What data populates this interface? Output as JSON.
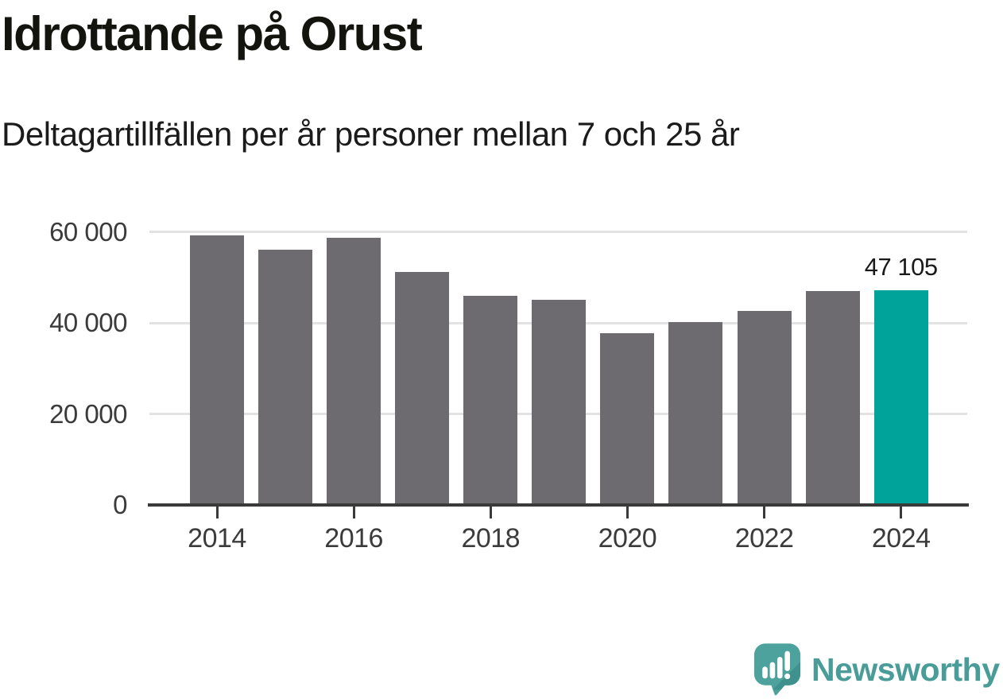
{
  "header": {
    "title": "Idrottande på Orust",
    "subtitle": "Deltagartillfällen per år personer mellan 7 och 25 år"
  },
  "chart_data": {
    "type": "bar",
    "title": "Idrottande på Orust",
    "subtitle": "Deltagartillfällen per år personer mellan 7 och 25 år",
    "categories": [
      "2014",
      "2015",
      "2016",
      "2017",
      "2018",
      "2019",
      "2020",
      "2021",
      "2022",
      "2023",
      "2024"
    ],
    "values": [
      59200,
      56000,
      58700,
      51100,
      46000,
      45000,
      37800,
      40100,
      42700,
      47000,
      47105
    ],
    "ylim": [
      0,
      60000
    ],
    "yticks": [
      0,
      20000,
      40000,
      60000
    ],
    "ytick_labels": [
      "0",
      "20 000",
      "40 000",
      "60 000"
    ],
    "xtick_labels": [
      "2014",
      "2016",
      "2018",
      "2020",
      "2022",
      "2024"
    ],
    "grid": "horizontal",
    "legend": "none",
    "highlight": {
      "category": "2024",
      "value": 47105,
      "label": "47 105"
    },
    "colors": {
      "bar": "#6e6b70",
      "highlight": "#00a399",
      "gridline": "#e2e2e2",
      "axis": "#3a3a3a",
      "tick_label": "#3b3b3b",
      "value_label": "#1a1a1a"
    }
  },
  "footer": {
    "brand": "Newsworthy",
    "icon": "newsworthy-speech-bubble-chart-icon",
    "colors": {
      "icon": "#4da29d",
      "icon_shade": "#3e918c",
      "text": "#4a9c98"
    }
  }
}
